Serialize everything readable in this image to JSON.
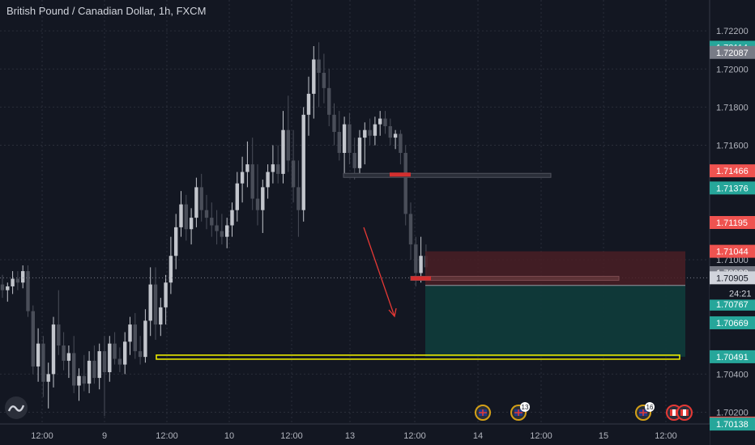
{
  "header": {
    "symbol_title": "British Pound / Canadian Dollar, 1h, FXCM"
  },
  "chart_data": {
    "type": "candlestick",
    "title": "British Pound / Canadian Dollar, 1h, FXCM",
    "ylim": [
      1.7013,
      1.7226
    ],
    "y_ticks": [
      "1.72200",
      "1.72000",
      "1.71800",
      "1.71600",
      "1.71000",
      "1.70400",
      "1.70200"
    ],
    "x_ticks": [
      "12:00",
      "9",
      "12:00",
      "10",
      "12:00",
      "13",
      "12:00",
      "14",
      "12:00",
      "15",
      "12:00"
    ],
    "price_tags": [
      {
        "label": "1.72114",
        "value": 1.72114,
        "color": "#26a69a"
      },
      {
        "label": "1.72087",
        "value": 1.72087,
        "color": "#787b86"
      },
      {
        "label": "1.71466",
        "value": 1.71466,
        "color": "#ef5350"
      },
      {
        "label": "1.71376",
        "value": 1.71376,
        "color": "#26a69a"
      },
      {
        "label": "1.71195",
        "value": 1.71195,
        "color": "#ef5350"
      },
      {
        "label": "1.71044",
        "value": 1.71044,
        "color": "#ef5350"
      },
      {
        "label": "1.70932",
        "value": 1.70932,
        "color": "#787b86"
      },
      {
        "label": "1.70905",
        "value": 1.70905,
        "color": "#d1d4dc"
      },
      {
        "label": "1.70802",
        "value": 1.70802,
        "color": "#787b86"
      },
      {
        "label": "1.70767",
        "value": 1.70767,
        "color": "#26a69a"
      },
      {
        "label": "1.70669",
        "value": 1.70669,
        "color": "#26a69a"
      },
      {
        "label": "1.70491",
        "value": 1.70491,
        "color": "#26a69a"
      },
      {
        "label": "1.70143",
        "value": 1.70143,
        "color": "#ef5350"
      },
      {
        "label": "1.70138",
        "value": 1.70138,
        "color": "#26a69a"
      }
    ],
    "countdown": "24:21",
    "current_price": 1.70905,
    "support_level": 1.70491,
    "resistance_level": 1.7144,
    "risk_zone": [
      1.70865,
      1.71044
    ],
    "reward_zone": [
      1.70491,
      1.70865
    ],
    "event_badges": [
      "16",
      "13"
    ],
    "candles": [
      [
        1.7087,
        1.7092,
        1.708,
        1.7084
      ],
      [
        1.7084,
        1.7088,
        1.7078,
        1.7086
      ],
      [
        1.7086,
        1.7094,
        1.7082,
        1.709
      ],
      [
        1.709,
        1.7094,
        1.7084,
        1.7088
      ],
      [
        1.7088,
        1.7097,
        1.7085,
        1.7094
      ],
      [
        1.7094,
        1.7097,
        1.707,
        1.7073
      ],
      [
        1.7073,
        1.7076,
        1.704,
        1.7044
      ],
      [
        1.7044,
        1.7064,
        1.7036,
        1.7056
      ],
      [
        1.7056,
        1.706,
        1.7028,
        1.7036
      ],
      [
        1.7036,
        1.7046,
        1.7022,
        1.704
      ],
      [
        1.704,
        1.707,
        1.7033,
        1.7066
      ],
      [
        1.7066,
        1.7084,
        1.705,
        1.7055
      ],
      [
        1.7055,
        1.7062,
        1.7042,
        1.7047
      ],
      [
        1.7047,
        1.7055,
        1.7038,
        1.7051
      ],
      [
        1.7051,
        1.706,
        1.703,
        1.7034
      ],
      [
        1.7034,
        1.7043,
        1.7026,
        1.7039
      ],
      [
        1.7039,
        1.705,
        1.7031,
        1.7035
      ],
      [
        1.7035,
        1.7052,
        1.703,
        1.7047
      ],
      [
        1.7047,
        1.7055,
        1.7035,
        1.7038
      ],
      [
        1.7038,
        1.7056,
        1.7032,
        1.7052
      ],
      [
        1.7052,
        1.706,
        1.7018,
        1.7041
      ],
      [
        1.7041,
        1.706,
        1.7036,
        1.7056
      ],
      [
        1.7056,
        1.7062,
        1.7045,
        1.7048
      ],
      [
        1.7048,
        1.7054,
        1.7041,
        1.7045
      ],
      [
        1.7045,
        1.7062,
        1.704,
        1.7057
      ],
      [
        1.7057,
        1.707,
        1.705,
        1.7066
      ],
      [
        1.7066,
        1.7072,
        1.7048,
        1.7052
      ],
      [
        1.7052,
        1.706,
        1.7045,
        1.7049
      ],
      [
        1.7049,
        1.7074,
        1.7046,
        1.7068
      ],
      [
        1.7068,
        1.7096,
        1.706,
        1.7087
      ],
      [
        1.7087,
        1.7096,
        1.7058,
        1.7066
      ],
      [
        1.7066,
        1.708,
        1.706,
        1.7075
      ],
      [
        1.7075,
        1.7092,
        1.7066,
        1.7088
      ],
      [
        1.7088,
        1.7112,
        1.7082,
        1.7102
      ],
      [
        1.7102,
        1.7124,
        1.7095,
        1.7117
      ],
      [
        1.7117,
        1.7136,
        1.7112,
        1.7129
      ],
      [
        1.7129,
        1.7134,
        1.711,
        1.7116
      ],
      [
        1.7116,
        1.7127,
        1.7108,
        1.7122
      ],
      [
        1.7122,
        1.7143,
        1.7117,
        1.7138
      ],
      [
        1.7138,
        1.7145,
        1.712,
        1.7126
      ],
      [
        1.7126,
        1.7134,
        1.7116,
        1.7122
      ],
      [
        1.7122,
        1.713,
        1.7112,
        1.7118
      ],
      [
        1.7118,
        1.7126,
        1.7108,
        1.7115
      ],
      [
        1.7115,
        1.7124,
        1.7108,
        1.7112
      ],
      [
        1.7112,
        1.7122,
        1.7106,
        1.7118
      ],
      [
        1.7118,
        1.713,
        1.7112,
        1.7126
      ],
      [
        1.7126,
        1.7146,
        1.712,
        1.714
      ],
      [
        1.714,
        1.7154,
        1.713,
        1.7146
      ],
      [
        1.7146,
        1.7162,
        1.7138,
        1.715
      ],
      [
        1.715,
        1.7164,
        1.7126,
        1.7132
      ],
      [
        1.7132,
        1.715,
        1.7118,
        1.7126
      ],
      [
        1.7126,
        1.7142,
        1.7114,
        1.7138
      ],
      [
        1.7138,
        1.715,
        1.7132,
        1.7146
      ],
      [
        1.7146,
        1.716,
        1.714,
        1.715
      ],
      [
        1.715,
        1.716,
        1.714,
        1.7145
      ],
      [
        1.7145,
        1.7178,
        1.714,
        1.7168
      ],
      [
        1.7168,
        1.7186,
        1.7146,
        1.7152
      ],
      [
        1.7152,
        1.7168,
        1.713,
        1.7138
      ],
      [
        1.7138,
        1.7152,
        1.7112,
        1.7126
      ],
      [
        1.7126,
        1.718,
        1.712,
        1.7176
      ],
      [
        1.7176,
        1.7196,
        1.7165,
        1.7187
      ],
      [
        1.7187,
        1.7212,
        1.7174,
        1.7205
      ],
      [
        1.7205,
        1.7214,
        1.718,
        1.7198
      ],
      [
        1.7198,
        1.7208,
        1.7182,
        1.719
      ],
      [
        1.719,
        1.72,
        1.717,
        1.7176
      ],
      [
        1.7176,
        1.7182,
        1.716,
        1.7167
      ],
      [
        1.7167,
        1.7178,
        1.7152,
        1.7156
      ],
      [
        1.7156,
        1.7175,
        1.7144,
        1.7171
      ],
      [
        1.7171,
        1.7177,
        1.715,
        1.7156
      ],
      [
        1.7156,
        1.7164,
        1.7142,
        1.7148
      ],
      [
        1.7148,
        1.7168,
        1.7144,
        1.7164
      ],
      [
        1.7164,
        1.7172,
        1.715,
        1.7168
      ],
      [
        1.7168,
        1.7174,
        1.716,
        1.7165
      ],
      [
        1.7165,
        1.7175,
        1.716,
        1.7171
      ],
      [
        1.7171,
        1.7178,
        1.7165,
        1.7174
      ],
      [
        1.7174,
        1.7178,
        1.7166,
        1.717
      ],
      [
        1.717,
        1.7174,
        1.716,
        1.7164
      ],
      [
        1.7164,
        1.7168,
        1.7158,
        1.7166
      ],
      [
        1.7166,
        1.7168,
        1.715,
        1.7156
      ],
      [
        1.7156,
        1.716,
        1.7118,
        1.7124
      ],
      [
        1.7124,
        1.713,
        1.71,
        1.7108
      ],
      [
        1.7108,
        1.7112,
        1.7086,
        1.7093
      ],
      [
        1.7093,
        1.7112,
        1.7088,
        1.7102
      ],
      [
        1.7102,
        1.7108,
        1.7092,
        1.7096
      ]
    ]
  }
}
